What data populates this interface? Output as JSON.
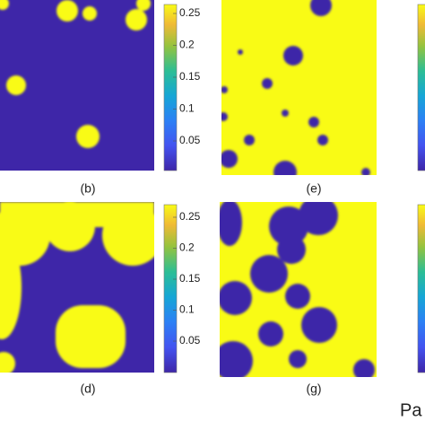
{
  "panels": [
    {
      "label": "(b)"
    },
    {
      "label": "(e)"
    },
    {
      "label": "(d)"
    },
    {
      "label": "(g)"
    }
  ],
  "colorbars": [
    {
      "ticks": [
        "0.25",
        "0.2",
        "0.15",
        "0.1",
        "0.05"
      ]
    },
    {
      "ticks": [
        "0.25",
        "0.2",
        "0.15",
        "0.1",
        "0.05"
      ]
    }
  ],
  "footer": "Pa"
}
